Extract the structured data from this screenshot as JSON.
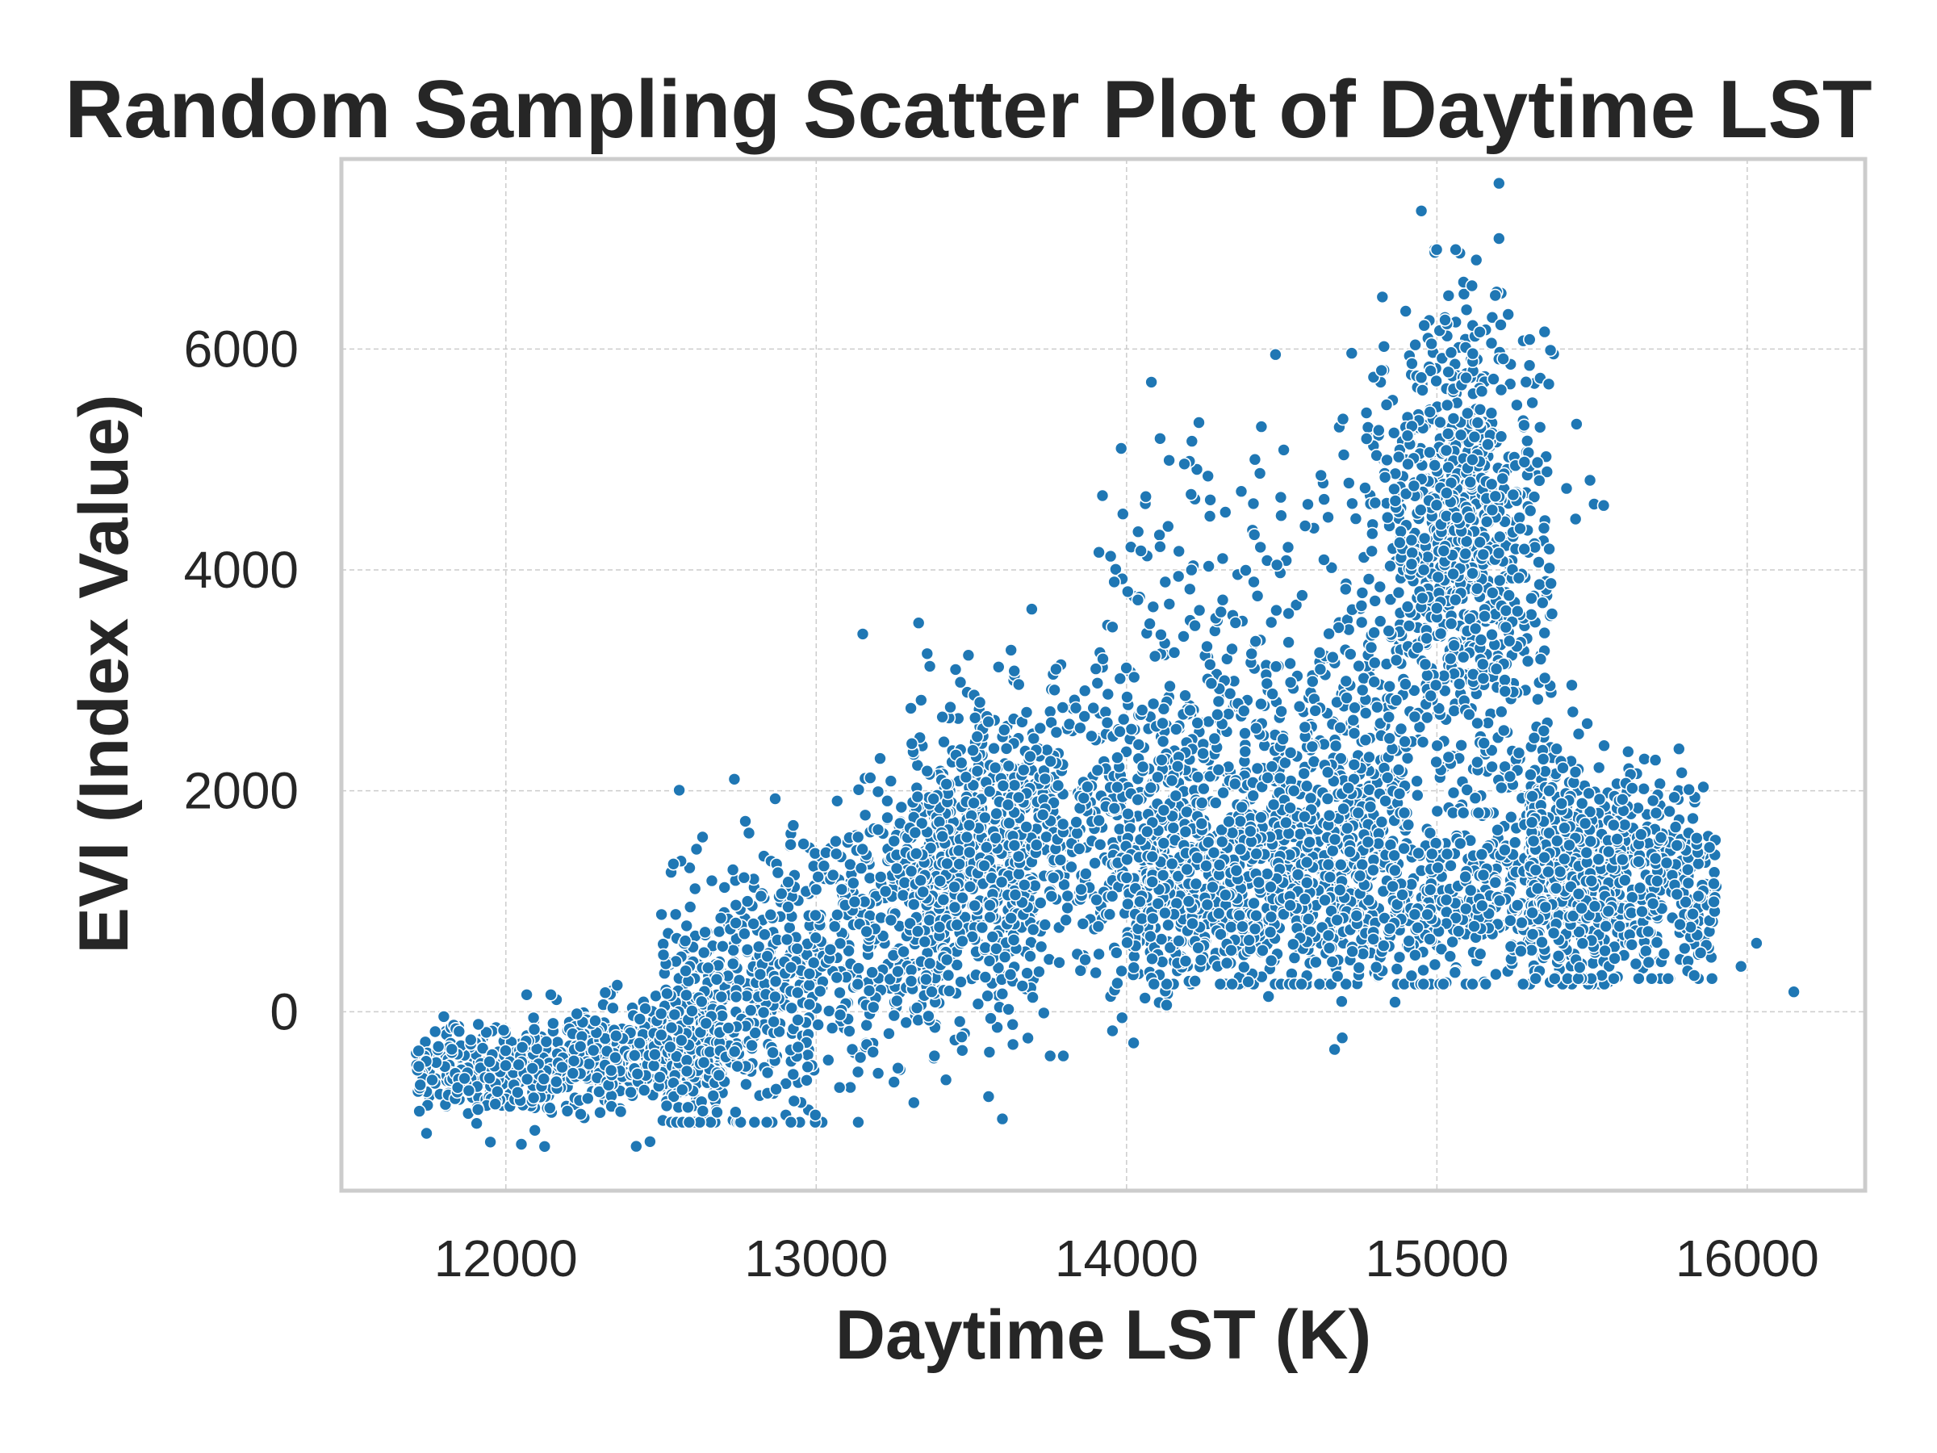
{
  "chart_data": {
    "type": "scatter",
    "title": "Random Sampling Scatter Plot of Daytime LST",
    "xlabel": "Daytime LST (K)",
    "ylabel": "EVI (Index Value)",
    "xlim": [
      11470,
      16380
    ],
    "ylim": [
      -1620,
      7720
    ],
    "xticks": [
      12000,
      13000,
      14000,
      15000,
      16000
    ],
    "yticks": [
      0,
      2000,
      4000,
      6000
    ],
    "grid": true,
    "legend": "none",
    "color": "#1f77b4",
    "edgecolor": "#ffffff",
    "approx_point_count": 6000,
    "clusters": [
      {
        "x_range": [
          11700,
          12700
        ],
        "y_center": -500,
        "y_spread": 320
      },
      {
        "x_range": [
          12600,
          13700
        ],
        "y_center": 700,
        "y_spread": 900
      },
      {
        "x_range": [
          13300,
          14900
        ],
        "y_center": 1600,
        "y_spread": 900
      },
      {
        "x_range": [
          14000,
          15600
        ],
        "y_center": 1100,
        "y_spread": 600
      },
      {
        "x_range": [
          14800,
          15400
        ],
        "y_center": 4300,
        "y_spread": 1500
      },
      {
        "x_range": [
          15300,
          15900
        ],
        "y_center": 1300,
        "y_spread": 700
      }
    ],
    "notable_points": [
      {
        "x": 15200,
        "y": 7500
      },
      {
        "x": 14950,
        "y": 7250
      },
      {
        "x": 15200,
        "y": 7000
      },
      {
        "x": 16150,
        "y": 180
      },
      {
        "x": 16030,
        "y": 620
      },
      {
        "x": 15980,
        "y": 410
      },
      {
        "x": 11950,
        "y": -1180
      },
      {
        "x": 12050,
        "y": -1200
      },
      {
        "x": 13600,
        "y": -970
      },
      {
        "x": 13150,
        "y": 3420
      },
      {
        "x": 13330,
        "y": 3520
      },
      {
        "x": 14480,
        "y": 5950
      },
      {
        "x": 14080,
        "y": 5700
      },
      {
        "x": 15450,
        "y": 5320
      },
      {
        "x": 15780,
        "y": 2380
      }
    ]
  }
}
